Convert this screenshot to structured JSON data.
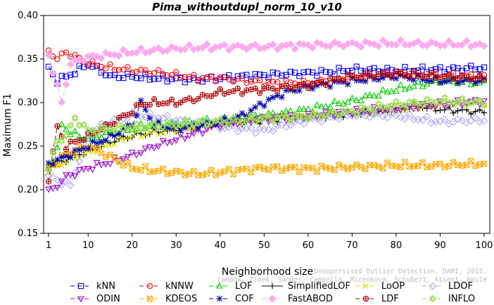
{
  "chart_data": {
    "type": "line",
    "title": "Pima_withoutdupl_norm_10_v10",
    "xlabel": "Neighborhood size",
    "ylabel": "Maximum F1",
    "xlim": [
      1,
      100
    ],
    "ylim": [
      0.15,
      0.4
    ],
    "xticks": [
      1,
      10,
      20,
      30,
      40,
      50,
      60,
      70,
      80,
      90,
      100
    ],
    "yticks": [
      0.15,
      0.2,
      0.25,
      0.3,
      0.35,
      0.4
    ],
    "ytick_labels": [
      "0.15",
      "0.20",
      "0.25",
      "0.30",
      "0.35",
      "0.40"
    ],
    "grid": false,
    "legend_position": "bottom",
    "watermark": [
      "Unsupervised Outlier Detection. DAMI, 2015.",
      "Campos, Zimek, Sander, Campello, Micenkova, Schubert, Assent, Houle"
    ],
    "series": [
      {
        "name": "kNN",
        "color": "#0000ff",
        "marker": "square",
        "dash": "6,4",
        "anchors": [
          [
            1,
            0.34
          ],
          [
            3,
            0.325
          ],
          [
            7,
            0.335
          ],
          [
            10,
            0.345
          ],
          [
            15,
            0.33
          ],
          [
            20,
            0.33
          ],
          [
            25,
            0.328
          ],
          [
            35,
            0.326
          ],
          [
            45,
            0.33
          ],
          [
            55,
            0.333
          ],
          [
            65,
            0.335
          ],
          [
            70,
            0.338
          ],
          [
            80,
            0.337
          ],
          [
            90,
            0.338
          ],
          [
            100,
            0.34
          ]
        ]
      },
      {
        "name": "kNNW",
        "color": "#ff0000",
        "marker": "circle",
        "dash": "6,4",
        "anchors": [
          [
            1,
            0.36
          ],
          [
            3,
            0.35
          ],
          [
            5,
            0.358
          ],
          [
            10,
            0.345
          ],
          [
            15,
            0.34
          ],
          [
            20,
            0.337
          ],
          [
            25,
            0.335
          ],
          [
            35,
            0.328
          ],
          [
            40,
            0.328
          ],
          [
            50,
            0.323
          ],
          [
            60,
            0.322
          ],
          [
            70,
            0.328
          ],
          [
            80,
            0.333
          ],
          [
            90,
            0.331
          ],
          [
            100,
            0.33
          ]
        ]
      },
      {
        "name": "LOF",
        "color": "#00cc00",
        "marker": "triangle",
        "dash": "6,4",
        "anchors": [
          [
            1,
            0.225
          ],
          [
            3,
            0.245
          ],
          [
            4,
            0.275
          ],
          [
            6,
            0.265
          ],
          [
            10,
            0.258
          ],
          [
            15,
            0.265
          ],
          [
            20,
            0.27
          ],
          [
            25,
            0.274
          ],
          [
            30,
            0.275
          ],
          [
            40,
            0.28
          ],
          [
            50,
            0.285
          ],
          [
            60,
            0.292
          ],
          [
            70,
            0.302
          ],
          [
            80,
            0.315
          ],
          [
            90,
            0.325
          ],
          [
            100,
            0.322
          ]
        ]
      },
      {
        "name": "SimplifiedLOF",
        "color": "#000000",
        "marker": "plus",
        "dash": "",
        "anchors": [
          [
            1,
            0.228
          ],
          [
            5,
            0.235
          ],
          [
            10,
            0.245
          ],
          [
            15,
            0.255
          ],
          [
            20,
            0.262
          ],
          [
            25,
            0.266
          ],
          [
            30,
            0.27
          ],
          [
            40,
            0.276
          ],
          [
            50,
            0.28
          ],
          [
            60,
            0.284
          ],
          [
            70,
            0.287
          ],
          [
            80,
            0.292
          ],
          [
            85,
            0.296
          ],
          [
            90,
            0.292
          ],
          [
            100,
            0.289
          ]
        ]
      },
      {
        "name": "LoOP",
        "color": "#dddd00",
        "marker": "x",
        "dash": "6,4",
        "anchors": [
          [
            1,
            0.222
          ],
          [
            5,
            0.232
          ],
          [
            10,
            0.242
          ],
          [
            15,
            0.252
          ],
          [
            20,
            0.262
          ],
          [
            25,
            0.265
          ],
          [
            30,
            0.268
          ],
          [
            40,
            0.275
          ],
          [
            50,
            0.282
          ],
          [
            60,
            0.285
          ],
          [
            70,
            0.288
          ],
          [
            80,
            0.292
          ],
          [
            90,
            0.298
          ],
          [
            100,
            0.3
          ]
        ]
      },
      {
        "name": "LDOF",
        "color": "#aaaaff",
        "marker": "diamond",
        "dash": "6,4",
        "anchors": [
          [
            1,
            0.215
          ],
          [
            6,
            0.205
          ],
          [
            10,
            0.265
          ],
          [
            15,
            0.278
          ],
          [
            20,
            0.286
          ],
          [
            25,
            0.284
          ],
          [
            30,
            0.28
          ],
          [
            40,
            0.272
          ],
          [
            50,
            0.268
          ],
          [
            60,
            0.28
          ],
          [
            70,
            0.286
          ],
          [
            80,
            0.285
          ],
          [
            90,
            0.278
          ],
          [
            100,
            0.28
          ]
        ]
      },
      {
        "name": "ODIN",
        "color": "#9900cc",
        "marker": "triangle-down",
        "dash": "6,4",
        "anchors": [
          [
            1,
            0.198
          ],
          [
            3,
            0.205
          ],
          [
            5,
            0.215
          ],
          [
            10,
            0.225
          ],
          [
            15,
            0.232
          ],
          [
            20,
            0.24
          ],
          [
            25,
            0.25
          ],
          [
            30,
            0.258
          ],
          [
            40,
            0.275
          ],
          [
            50,
            0.282
          ],
          [
            60,
            0.285
          ],
          [
            70,
            0.29
          ],
          [
            80,
            0.293
          ],
          [
            90,
            0.298
          ],
          [
            100,
            0.302
          ]
        ]
      },
      {
        "name": "KDEOS",
        "color": "#ffaa00",
        "marker": "box-x",
        "dash": "6,4",
        "anchors": [
          [
            1,
            0.225
          ],
          [
            5,
            0.24
          ],
          [
            10,
            0.25
          ],
          [
            15,
            0.238
          ],
          [
            20,
            0.225
          ],
          [
            25,
            0.222
          ],
          [
            30,
            0.22
          ],
          [
            35,
            0.218
          ],
          [
            40,
            0.22
          ],
          [
            50,
            0.225
          ],
          [
            60,
            0.224
          ],
          [
            70,
            0.226
          ],
          [
            80,
            0.228
          ],
          [
            90,
            0.228
          ],
          [
            100,
            0.23
          ]
        ]
      },
      {
        "name": "COF",
        "color": "#0000aa",
        "marker": "star",
        "dash": "6,4",
        "anchors": [
          [
            1,
            0.23
          ],
          [
            5,
            0.238
          ],
          [
            10,
            0.25
          ],
          [
            15,
            0.26
          ],
          [
            20,
            0.275
          ],
          [
            22,
            0.3
          ],
          [
            25,
            0.275
          ],
          [
            30,
            0.27
          ],
          [
            40,
            0.278
          ],
          [
            45,
            0.285
          ],
          [
            50,
            0.3
          ],
          [
            55,
            0.312
          ],
          [
            60,
            0.318
          ],
          [
            70,
            0.325
          ],
          [
            80,
            0.33
          ],
          [
            90,
            0.325
          ],
          [
            100,
            0.325
          ]
        ]
      },
      {
        "name": "FastABOD",
        "color": "#ffaaee",
        "marker": "diamond-filled",
        "dash": "6,4",
        "anchors": [
          [
            1,
            0.355
          ],
          [
            4,
            0.3
          ],
          [
            6,
            0.345
          ],
          [
            10,
            0.352
          ],
          [
            15,
            0.355
          ],
          [
            20,
            0.358
          ],
          [
            30,
            0.362
          ],
          [
            40,
            0.364
          ],
          [
            50,
            0.364
          ],
          [
            60,
            0.366
          ],
          [
            70,
            0.367
          ],
          [
            80,
            0.368
          ],
          [
            90,
            0.367
          ],
          [
            99,
            0.367
          ],
          [
            100,
            0.362
          ]
        ]
      },
      {
        "name": "LDF",
        "color": "#aa0000",
        "marker": "circle-plus",
        "dash": "6,4",
        "anchors": [
          [
            1,
            0.213
          ],
          [
            3,
            0.272
          ],
          [
            5,
            0.25
          ],
          [
            10,
            0.262
          ],
          [
            15,
            0.275
          ],
          [
            20,
            0.29
          ],
          [
            22,
            0.298
          ],
          [
            25,
            0.3
          ],
          [
            30,
            0.3
          ],
          [
            35,
            0.305
          ],
          [
            40,
            0.312
          ],
          [
            50,
            0.315
          ],
          [
            60,
            0.32
          ],
          [
            70,
            0.33
          ],
          [
            80,
            0.333
          ],
          [
            90,
            0.33
          ],
          [
            100,
            0.328
          ]
        ]
      },
      {
        "name": "INFLO",
        "color": "#99dd55",
        "marker": "hexagram",
        "dash": "6,4",
        "anchors": [
          [
            1,
            0.225
          ],
          [
            3,
            0.255
          ],
          [
            5,
            0.262
          ],
          [
            7,
            0.282
          ],
          [
            10,
            0.268
          ],
          [
            15,
            0.27
          ],
          [
            20,
            0.272
          ],
          [
            30,
            0.275
          ],
          [
            40,
            0.278
          ],
          [
            50,
            0.282
          ],
          [
            60,
            0.284
          ],
          [
            70,
            0.29
          ],
          [
            80,
            0.298
          ],
          [
            90,
            0.302
          ],
          [
            100,
            0.3
          ]
        ]
      }
    ]
  }
}
